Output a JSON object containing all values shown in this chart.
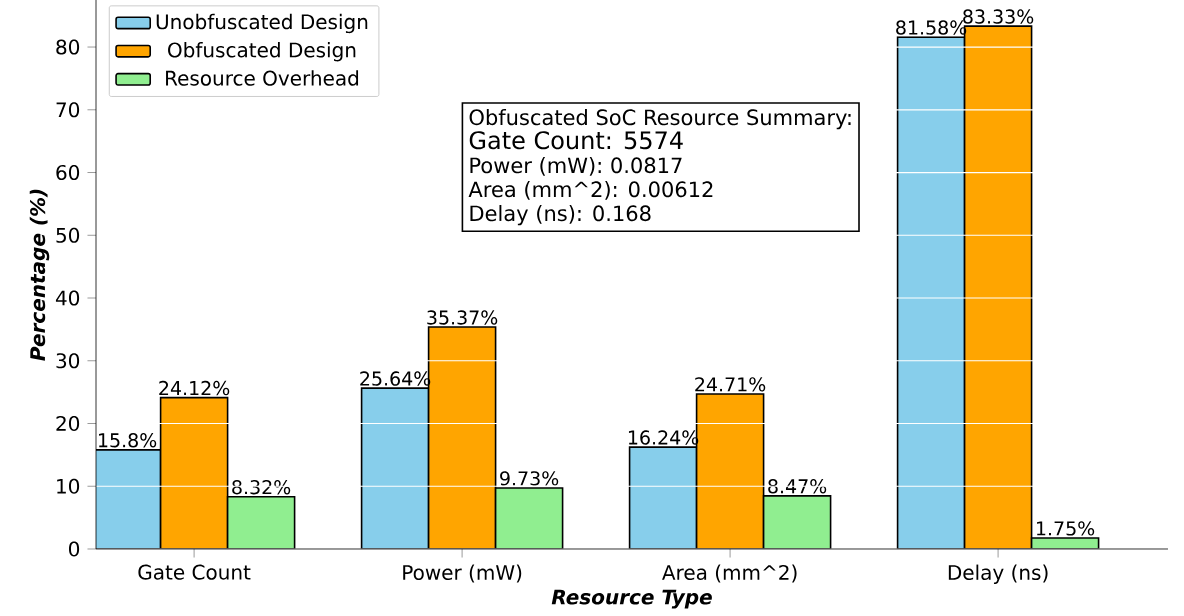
{
  "chart_data": {
    "type": "bar",
    "xlabel": "Resource Type",
    "ylabel": "Percentage  (%)",
    "categories": [
      "Gate Count",
      "Power (mW)",
      "Area (mm^2)",
      "Delay (ns)"
    ],
    "series": [
      {
        "name": "Unobfuscated Design",
        "color": "#87ceeb",
        "values": [
          15.8,
          25.64,
          16.24,
          81.58
        ],
        "value_labels": [
          "15.8%",
          "25.64%",
          "16.24%",
          "81.58%"
        ]
      },
      {
        "name": "Obfuscated Design",
        "color": "#ffa500",
        "values": [
          24.12,
          35.37,
          24.71,
          83.33
        ],
        "value_labels": [
          "24.12%",
          "35.37%",
          "24.71%",
          "83.33%"
        ]
      },
      {
        "name": "Resource Overhead",
        "color": "#90ee90",
        "values": [
          8.32,
          9.73,
          8.47,
          1.75
        ],
        "value_labels": [
          "8.32%",
          "9.73%",
          "8.47%",
          "1.75%"
        ]
      }
    ],
    "ylim": [
      0,
      87.5
    ],
    "yticks": [
      0,
      10,
      20,
      30,
      40,
      50,
      60,
      70,
      80
    ],
    "legend": "top left",
    "grid": "y",
    "annotations": [
      "Obfuscated SoC Resource Summary:",
      "Gate Count: 5574",
      "Power (mW): 0.0817",
      "Area (mm^2): 0.00612",
      "Delay (ns): 0.168"
    ]
  }
}
